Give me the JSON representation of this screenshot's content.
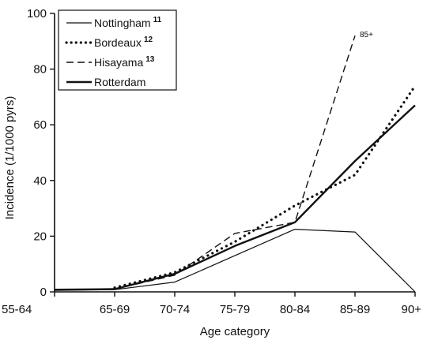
{
  "chart_data": {
    "type": "line",
    "title": "",
    "xlabel": "Age category",
    "ylabel": "Incidence (1/1000 pyrs)",
    "categories": [
      "55-64",
      "65-69",
      "70-74",
      "75-79",
      "80-84",
      "85-89",
      "90+"
    ],
    "ylim": [
      0,
      100
    ],
    "yticks": [
      0,
      20,
      40,
      60,
      80,
      100
    ],
    "grid": false,
    "legend_position": "top-left",
    "series": [
      {
        "name": "Nottingham",
        "superscript": "11",
        "style": "solid-thin",
        "color": "#111111",
        "x": [
          "55-64",
          "65-69",
          "70-74",
          "75-79",
          "80-84",
          "85-89",
          "90+"
        ],
        "values": [
          0.5,
          0.8,
          3.5,
          13,
          22.5,
          21.5,
          0
        ]
      },
      {
        "name": "Bordeaux",
        "superscript": "12",
        "style": "dotted",
        "color": "#111111",
        "x": [
          "65-69",
          "70-74",
          "75-79",
          "80-84",
          "85-89",
          "90+"
        ],
        "values": [
          1.5,
          7,
          18,
          31,
          42,
          74
        ]
      },
      {
        "name": "Hisayama",
        "superscript": "13",
        "style": "dashed",
        "color": "#111111",
        "x": [
          "65-69",
          "70-74",
          "75-79",
          "80-84",
          "85-89"
        ],
        "values": [
          1,
          6,
          21,
          25,
          92
        ]
      },
      {
        "name": "Rotterdam",
        "superscript": "",
        "style": "solid-thick",
        "color": "#111111",
        "x": [
          "55-64",
          "65-69",
          "70-74",
          "75-79",
          "80-84",
          "85-89",
          "90+"
        ],
        "values": [
          0.8,
          1,
          6.5,
          16.5,
          25,
          47,
          67
        ]
      }
    ],
    "annotations": [
      {
        "text": "85+",
        "series": "Hisayama",
        "x": "85-89",
        "y": 92
      }
    ]
  }
}
